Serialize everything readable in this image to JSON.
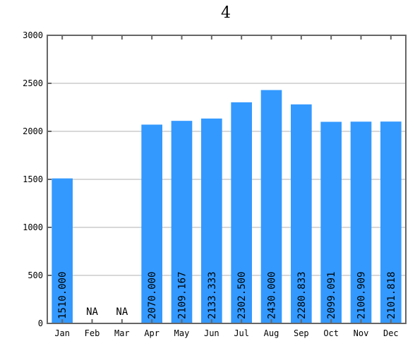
{
  "chart_data": {
    "type": "bar",
    "title": "4",
    "xlabel": "",
    "ylabel": "",
    "categories": [
      "Jan",
      "Feb",
      "Mar",
      "Apr",
      "May",
      "Jun",
      "Jul",
      "Aug",
      "Sep",
      "Oct",
      "Nov",
      "Dec"
    ],
    "values": [
      1510.0,
      null,
      null,
      2070.0,
      2109.167,
      2133.333,
      2302.5,
      2430.0,
      2280.833,
      2099.091,
      2100.909,
      2101.818
    ],
    "value_labels": [
      "1510.000",
      "NA",
      "NA",
      "2070.000",
      "2109.167",
      "2133.333",
      "2302.500",
      "2430.000",
      "2280.833",
      "2099.091",
      "2100.909",
      "2101.818"
    ],
    "ylim": [
      0,
      3000
    ],
    "yticks": [
      0,
      500,
      1000,
      1500,
      2000,
      2500,
      3000
    ],
    "grid": true,
    "legend": "none",
    "colors": {
      "bar": "#3399ff",
      "axis": "#666666",
      "grid": "#b0b0b0",
      "text": "#000000"
    }
  }
}
